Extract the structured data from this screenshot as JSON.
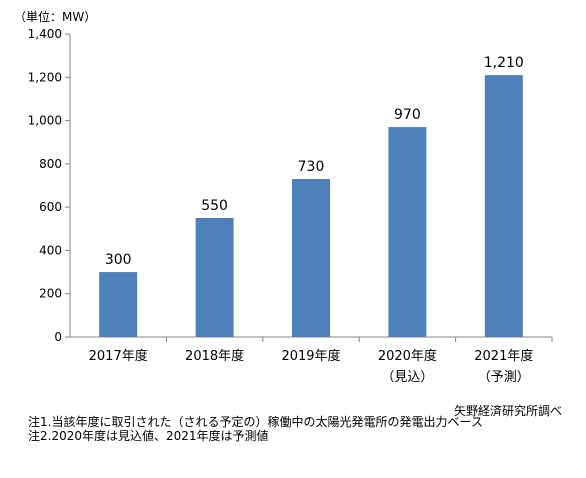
{
  "chart_data": {
    "type": "bar",
    "unit_label": "（単位：MW）",
    "categories": [
      "2017年度",
      "2018年度",
      "2019年度",
      "2020年度",
      "2021年度"
    ],
    "category_sublabels": [
      "",
      "",
      "",
      "（見込）",
      "（予測）"
    ],
    "values": [
      300,
      550,
      730,
      970,
      1210
    ],
    "value_labels": [
      "300",
      "550",
      "730",
      "970",
      "1,210"
    ],
    "y_ticks": [
      0,
      200,
      400,
      600,
      800,
      1000,
      1200,
      1400
    ],
    "y_tick_labels": [
      "0",
      "200",
      "400",
      "600",
      "800",
      "1,000",
      "1,200",
      "1,400"
    ],
    "ylim": [
      0,
      1400
    ],
    "grid": false,
    "bar_color": "#4F81BD"
  },
  "source": "矢野経済研究所調べ",
  "notes": [
    "注1.当該年度に取引された（される予定の）稼働中の太陽光発電所の発電出力ベース",
    "注2.2020年度は見込値、2021年度は予測値"
  ]
}
